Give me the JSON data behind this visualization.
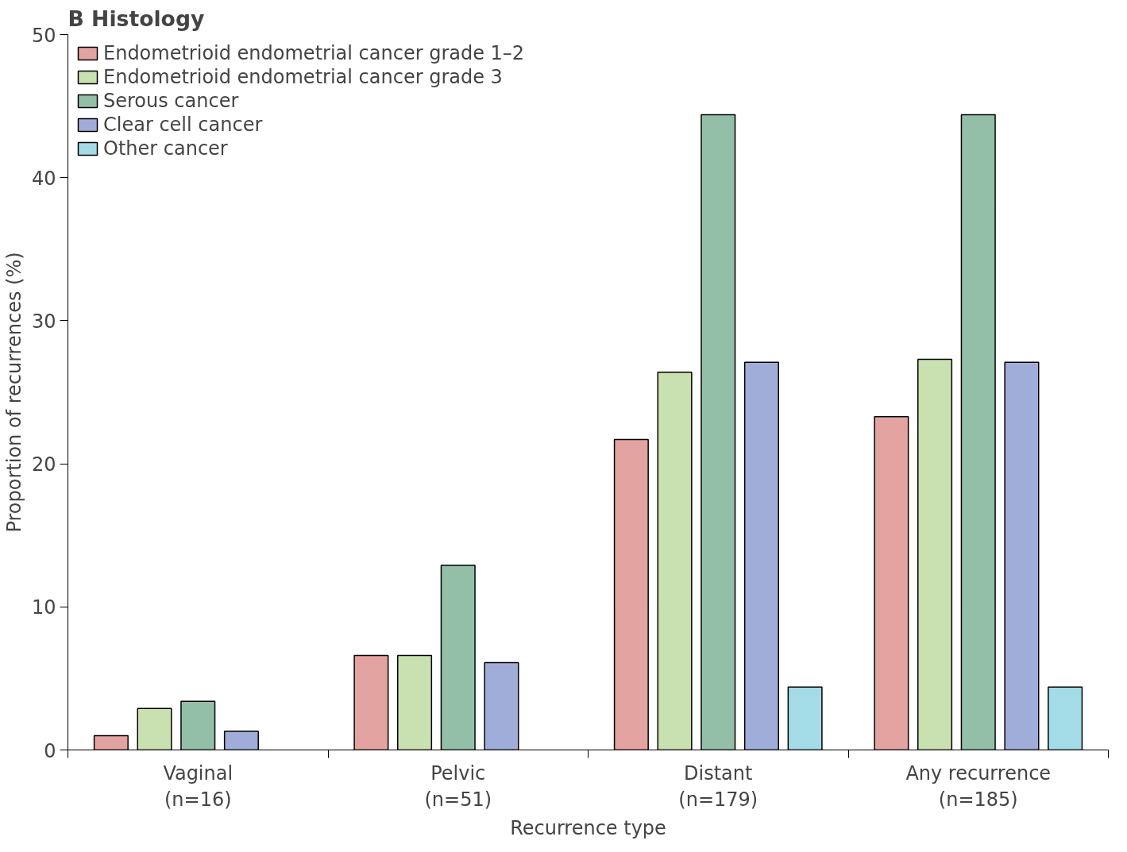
{
  "chart_data": {
    "type": "bar",
    "title": "B Histology",
    "xlabel": "Recurrence type",
    "ylabel": "Proportion of recurrences (%)",
    "categories": [
      "Vaginal\n(n=16)",
      "Pelvic\n(n=51)",
      "Distant\n(n=179)",
      "Any recurrence\n(n=185)"
    ],
    "series": [
      {
        "name": "Endometrioid endometrial cancer grade 1–2",
        "color": "#e3a3a0",
        "values": [
          1.0,
          6.6,
          21.7,
          23.3
        ]
      },
      {
        "name": "Endometrioid endometrial cancer grade 3",
        "color": "#c9e0b0",
        "values": [
          2.9,
          6.6,
          26.4,
          27.3
        ]
      },
      {
        "name": "Serous cancer",
        "color": "#93bfa8",
        "values": [
          3.4,
          12.9,
          44.4,
          44.4
        ]
      },
      {
        "name": "Clear cell cancer",
        "color": "#a0add8",
        "values": [
          1.3,
          6.1,
          27.1,
          27.1
        ]
      },
      {
        "name": "Other cancer",
        "color": "#a3dbe6",
        "values": [
          null,
          null,
          4.4,
          4.4
        ]
      }
    ],
    "ylim": [
      0,
      50
    ],
    "yticks": [
      0,
      10,
      20,
      30,
      40,
      50
    ],
    "grid": false,
    "legend": "top left"
  }
}
